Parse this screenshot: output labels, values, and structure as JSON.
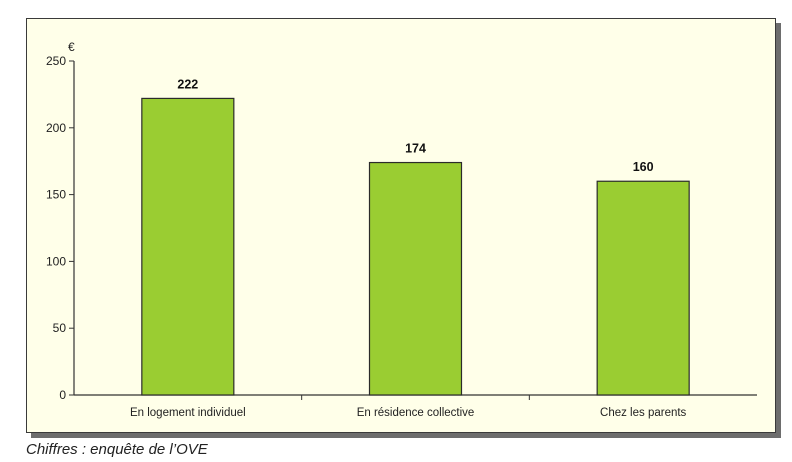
{
  "chart_data": {
    "type": "bar",
    "categories": [
      "En logement individuel",
      "En résidence collective",
      "Chez les parents"
    ],
    "values": [
      222,
      174,
      160
    ],
    "data_labels": [
      "222",
      "174",
      "160"
    ],
    "unit_label": "€",
    "y_ticks": [
      "0",
      "50",
      "100",
      "150",
      "200",
      "250"
    ],
    "ylim": [
      0,
      250
    ],
    "grid": false,
    "legend": "none",
    "bar_color": "#9ACD32",
    "bar_edge_color": "#2b2b2b",
    "plot_background": "#ffffe9"
  },
  "caption": "Chiffres : enquête de l’OVE"
}
